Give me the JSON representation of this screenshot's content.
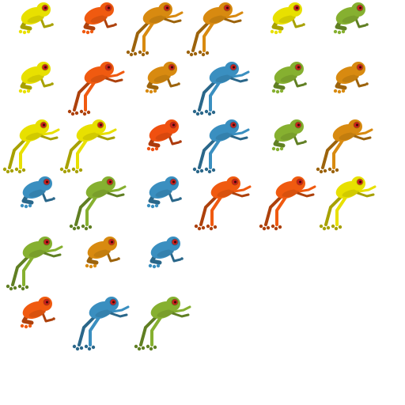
{
  "sprites": [
    {
      "color": "#e8e000"
    },
    {
      "color": "#f05a10"
    },
    {
      "color": "#d88a10"
    },
    {
      "color": "#d88a10"
    },
    {
      "color": "#e8e000"
    },
    {
      "color": "#86b030"
    },
    {
      "color": "#e8e000"
    },
    {
      "color": "#f05a10"
    },
    {
      "color": "#d88a10"
    },
    {
      "color": "#3a8fc0"
    },
    {
      "color": "#86b030"
    },
    {
      "color": "#d88a10"
    },
    {
      "color": "#e8e000"
    },
    {
      "color": "#e8e000"
    },
    {
      "color": "#f05010"
    },
    {
      "color": "#3a8fc0"
    },
    {
      "color": "#86b030"
    },
    {
      "color": "#d88a10"
    },
    {
      "color": "#3a8fc0"
    },
    {
      "color": "#86b030"
    },
    {
      "color": "#3a8fc0"
    },
    {
      "color": "#f05a10"
    },
    {
      "color": "#f05a10"
    },
    {
      "color": "#e8e000"
    },
    {
      "color": "#86b030"
    },
    {
      "color": "#d88a10"
    },
    {
      "color": "#3a8fc0"
    },
    {
      "color": "#f05a10"
    },
    {
      "color": "#3a8fc0"
    },
    {
      "color": "#86b030"
    }
  ]
}
